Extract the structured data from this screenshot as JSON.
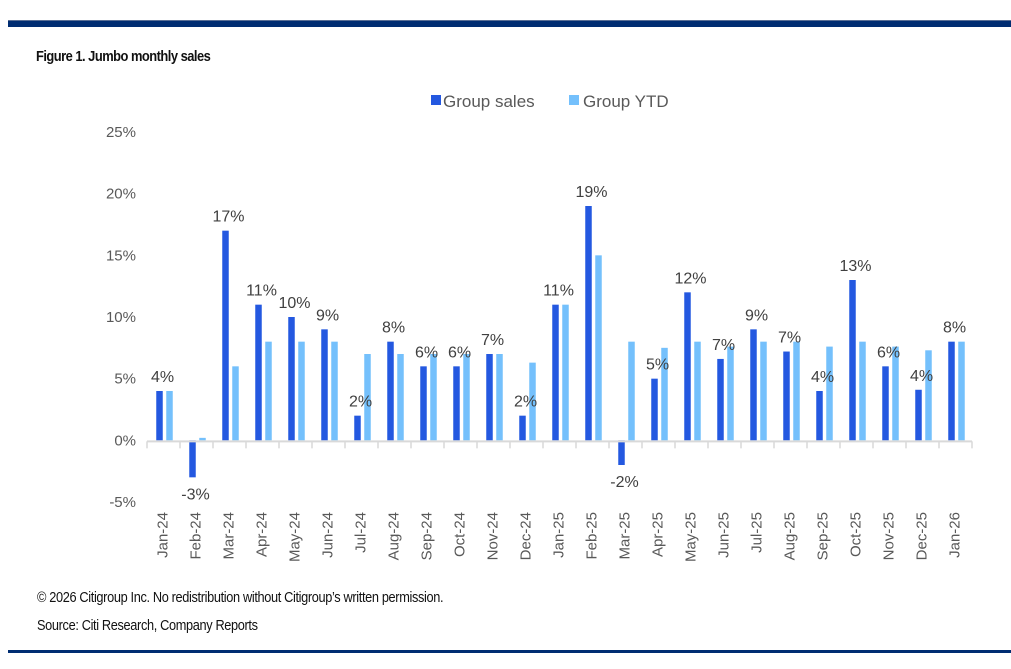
{
  "figure": {
    "title": "Figure 1. Jumbo monthly sales",
    "copyright": "© 2026 Citigroup Inc. No redistribution without Citigroup’s written permission.",
    "source": "Source: Citi Research, Company Reports"
  },
  "colors": {
    "group_sales": "#2458e0",
    "group_ytd": "#74c0fc",
    "rule": "#002d72",
    "axis": "#d9d9d9"
  },
  "chart_data": {
    "type": "bar",
    "title": "Figure 1. Jumbo monthly sales",
    "xlabel": "",
    "ylabel": "",
    "ylim": [
      -5,
      25
    ],
    "yticks": [
      -5,
      0,
      5,
      10,
      15,
      20,
      25
    ],
    "ytick_labels": [
      "-5%",
      "0%",
      "5%",
      "10%",
      "15%",
      "20%",
      "25%"
    ],
    "grid": false,
    "legend_position": "top-center",
    "categories": [
      "Jan-24",
      "Feb-24",
      "Mar-24",
      "Apr-24",
      "May-24",
      "Jun-24",
      "Jul-24",
      "Aug-24",
      "Sep-24",
      "Oct-24",
      "Nov-24",
      "Dec-24",
      "Jan-25",
      "Feb-25",
      "Mar-25",
      "Apr-25",
      "May-25",
      "Jun-25",
      "Jul-25",
      "Aug-25",
      "Sep-25",
      "Oct-25",
      "Nov-25",
      "Dec-25",
      "Jan-26"
    ],
    "series": [
      {
        "name": "Group sales",
        "values": [
          4,
          -3,
          17,
          11,
          10,
          9,
          2,
          8,
          6,
          6,
          7,
          2,
          11,
          19,
          -2,
          5,
          12,
          6.6,
          9,
          7.2,
          4,
          13,
          6,
          4.1,
          8
        ],
        "data_labels": [
          "4%",
          "-3%",
          "17%",
          "11%",
          "10%",
          "9%",
          "2%",
          "8%",
          "6%",
          "6%",
          "7%",
          "2%",
          "11%",
          "19%",
          "-2%",
          "5%",
          "12%",
          "7%",
          "9%",
          "7%",
          "4%",
          "13%",
          "6%",
          "4%",
          "8%"
        ]
      },
      {
        "name": "Group YTD",
        "values": [
          4,
          0.2,
          6,
          8,
          8,
          8,
          7,
          7,
          7,
          7,
          7,
          6.3,
          11,
          15,
          8,
          7.5,
          8,
          7.6,
          8,
          8,
          7.6,
          8,
          7.6,
          7.3,
          8
        ]
      }
    ]
  }
}
